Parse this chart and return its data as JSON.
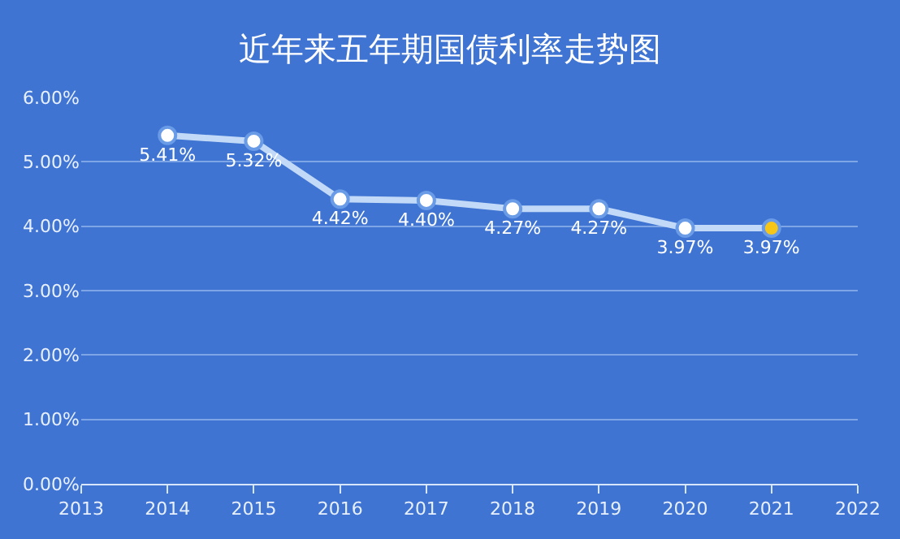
{
  "chart_data": {
    "type": "line",
    "title": "近年来五年期国债利率走势图",
    "x": [
      2014,
      2015,
      2016,
      2017,
      2018,
      2019,
      2020,
      2021
    ],
    "series": [
      {
        "color": "#c2daf8",
        "colors": [
          "#ffffff",
          "#ffffff",
          "#ffffff",
          "#ffffff",
          "#ffffff",
          "#ffffff",
          "#ffffff",
          "#f5c518"
        ],
        "values": [
          5.41,
          5.32,
          4.42,
          4.4,
          4.27,
          4.27,
          3.97,
          3.97
        ],
        "value_labels": [
          "5.41%",
          "5.32%",
          "4.42%",
          "4.40%",
          "4.27%",
          "4.27%",
          "3.97%",
          "3.97%"
        ]
      }
    ],
    "xlim": [
      2013,
      2022
    ],
    "xticks": [
      2013,
      2014,
      2015,
      2016,
      2017,
      2018,
      2019,
      2020,
      2021,
      2022
    ],
    "ylim": [
      0,
      6
    ],
    "yticks": [
      {
        "value": 0,
        "label": "0.00%"
      },
      {
        "value": 1,
        "label": "1.00%"
      },
      {
        "value": 2,
        "label": "2.00%"
      },
      {
        "value": 3,
        "label": "3.00%"
      },
      {
        "value": 4,
        "label": "4.00%"
      },
      {
        "value": 5,
        "label": "5.00%"
      },
      {
        "value": 6,
        "label": "6.00%"
      }
    ],
    "grid": "y",
    "legend": false,
    "marker": "circle",
    "line_style": "solid"
  }
}
